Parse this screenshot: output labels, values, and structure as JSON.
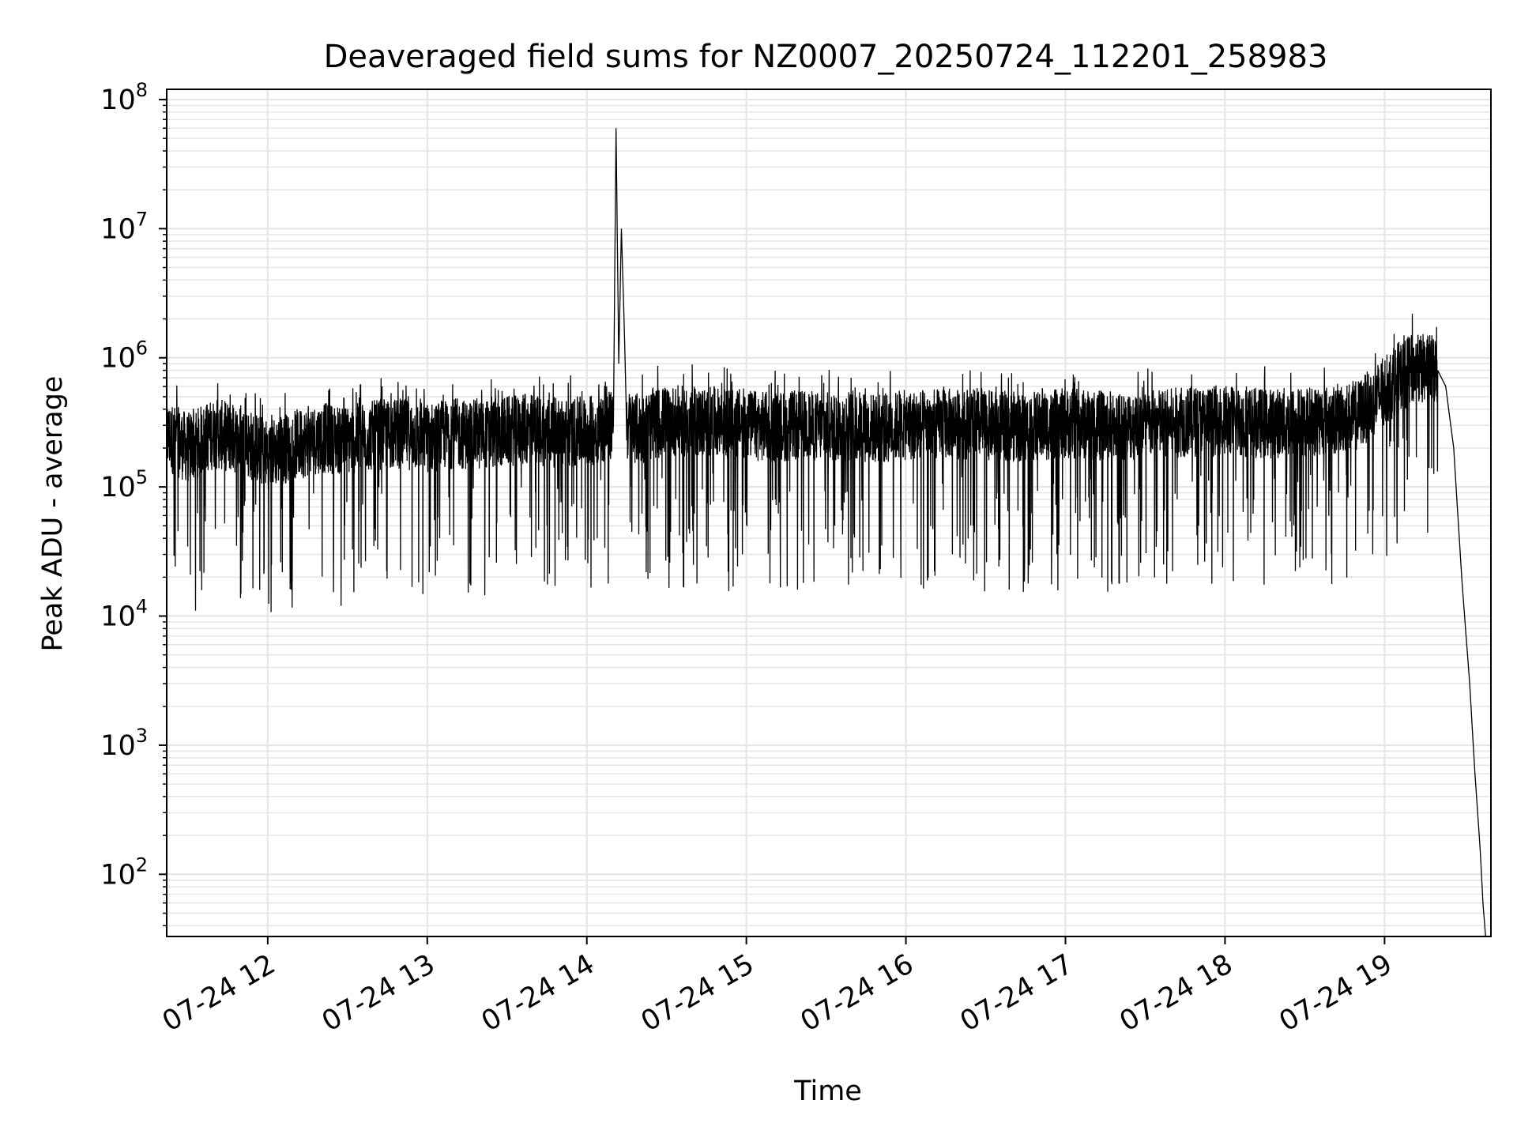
{
  "chart_data": {
    "type": "line",
    "title": "Deaveraged field sums for NZ0007_20250724_112201_258983",
    "xlabel": "Time",
    "ylabel": "Peak ADU - average",
    "yscale": "log",
    "ylim": [
      33,
      120000000
    ],
    "xlim": [
      "2025-07-24 11:22:01",
      "2025-07-24 19:40:00"
    ],
    "grid": true,
    "line_color": "#000000",
    "grid_color": "#e6e6e6",
    "x_ticks": [
      {
        "value": "2025-07-24 12:00",
        "label": "07-24 12"
      },
      {
        "value": "2025-07-24 13:00",
        "label": "07-24 13"
      },
      {
        "value": "2025-07-24 14:00",
        "label": "07-24 14"
      },
      {
        "value": "2025-07-24 15:00",
        "label": "07-24 15"
      },
      {
        "value": "2025-07-24 16:00",
        "label": "07-24 16"
      },
      {
        "value": "2025-07-24 17:00",
        "label": "07-24 17"
      },
      {
        "value": "2025-07-24 18:00",
        "label": "07-24 18"
      },
      {
        "value": "2025-07-24 19:00",
        "label": "07-24 19"
      }
    ],
    "y_ticks": [
      {
        "value": 100,
        "base": "10",
        "exp": "2"
      },
      {
        "value": 1000,
        "base": "10",
        "exp": "3"
      },
      {
        "value": 10000,
        "base": "10",
        "exp": "4"
      },
      {
        "value": 100000,
        "base": "10",
        "exp": "5"
      },
      {
        "value": 1000000,
        "base": "10",
        "exp": "6"
      },
      {
        "value": 10000000,
        "base": "10",
        "exp": "7"
      },
      {
        "value": 100000000,
        "base": "10",
        "exp": "8"
      }
    ],
    "series": [
      {
        "x": [
          "2025-07-24 11:22",
          "2025-07-24 11:30",
          "2025-07-24 11:40",
          "2025-07-24 11:50",
          "2025-07-24 12:00",
          "2025-07-24 12:10",
          "2025-07-24 12:20",
          "2025-07-24 12:30",
          "2025-07-24 12:40",
          "2025-07-24 12:50",
          "2025-07-24 13:00",
          "2025-07-24 13:10",
          "2025-07-24 13:20",
          "2025-07-24 13:30",
          "2025-07-24 13:40",
          "2025-07-24 13:50",
          "2025-07-24 14:00",
          "2025-07-24 14:10",
          "2025-07-24 14:11",
          "2025-07-24 14:12",
          "2025-07-24 14:13",
          "2025-07-24 14:14",
          "2025-07-24 14:15",
          "2025-07-24 14:20",
          "2025-07-24 14:30",
          "2025-07-24 14:40",
          "2025-07-24 14:48",
          "2025-07-24 14:50",
          "2025-07-24 15:00",
          "2025-07-24 15:02",
          "2025-07-24 15:10",
          "2025-07-24 15:20",
          "2025-07-24 15:30",
          "2025-07-24 15:40",
          "2025-07-24 15:50",
          "2025-07-24 16:00",
          "2025-07-24 16:15",
          "2025-07-24 16:30",
          "2025-07-24 16:45",
          "2025-07-24 17:00",
          "2025-07-24 17:15",
          "2025-07-24 17:30",
          "2025-07-24 17:45",
          "2025-07-24 18:00",
          "2025-07-24 18:15",
          "2025-07-24 18:30",
          "2025-07-24 18:40",
          "2025-07-24 18:50",
          "2025-07-24 19:00",
          "2025-07-24 19:05",
          "2025-07-24 19:10",
          "2025-07-24 19:15",
          "2025-07-24 19:20",
          "2025-07-24 19:23",
          "2025-07-24 19:26",
          "2025-07-24 19:29",
          "2025-07-24 19:32",
          "2025-07-24 19:34",
          "2025-07-24 19:36",
          "2025-07-24 19:37",
          "2025-07-24 19:38"
        ],
        "y": [
          250000,
          200000,
          260000,
          230000,
          180000,
          210000,
          240000,
          230000,
          250000,
          260000,
          240000,
          260000,
          250000,
          270000,
          280000,
          260000,
          270000,
          300000,
          60000000,
          900000,
          10000000,
          2000000,
          300000,
          280000,
          330000,
          320000,
          320000,
          310000,
          310000,
          300000,
          290000,
          300000,
          290000,
          300000,
          280000,
          300000,
          310000,
          300000,
          290000,
          310000,
          300000,
          300000,
          320000,
          330000,
          310000,
          320000,
          330000,
          360000,
          550000,
          700000,
          800000,
          820000,
          800000,
          600000,
          200000,
          20000,
          3000,
          600,
          150,
          60,
          33
        ]
      }
    ]
  }
}
